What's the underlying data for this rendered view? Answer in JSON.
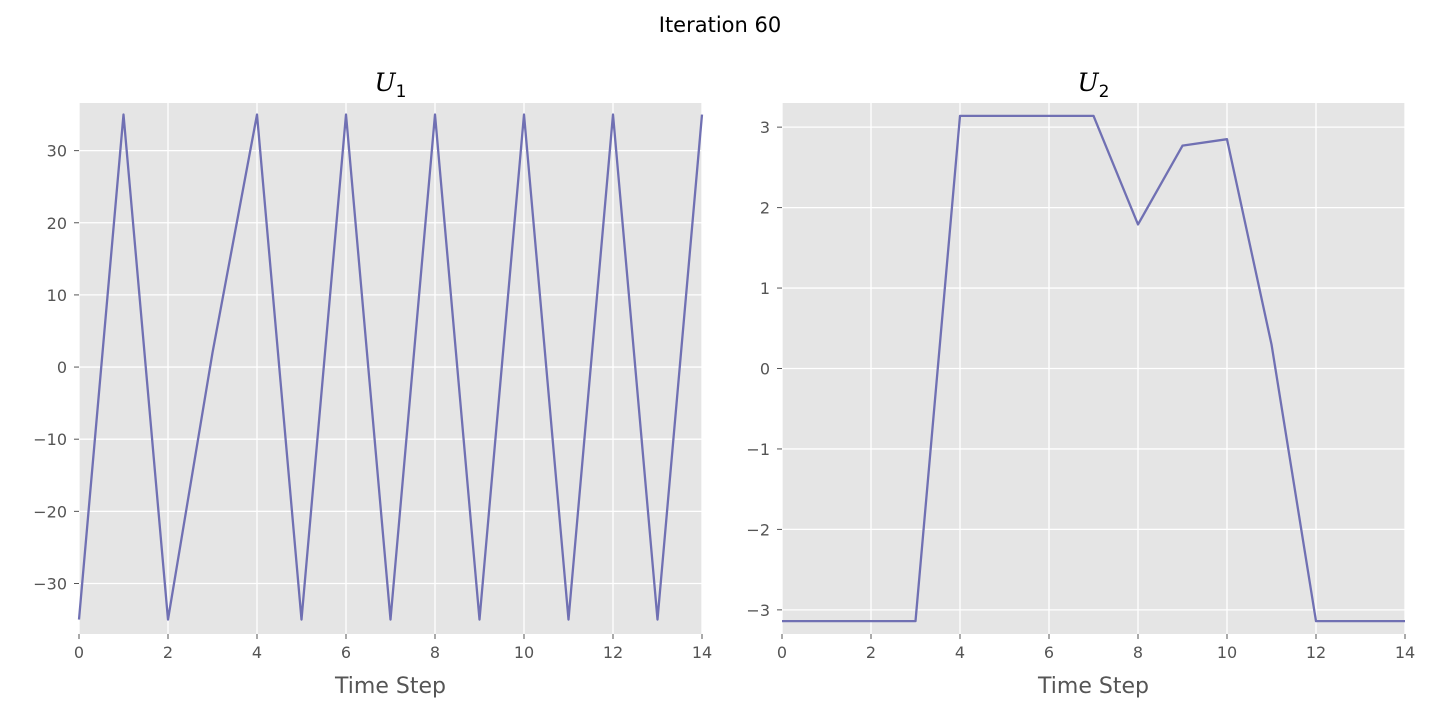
{
  "suptitle": "Iteration 60",
  "colors": {
    "plot_bg": "#e5e5e5",
    "grid": "#ffffff",
    "line": "#7070b3",
    "tick_text": "#555555"
  },
  "chart_data": [
    {
      "type": "line",
      "title": "U",
      "title_subscript": "1",
      "xlabel": "Time Step",
      "ylabel": "",
      "xlim": [
        0,
        14
      ],
      "ylim": [
        -37,
        36.6
      ],
      "xticks": [
        0,
        2,
        4,
        6,
        8,
        10,
        12,
        14
      ],
      "yticks": [
        -30,
        -20,
        -10,
        0,
        10,
        20,
        30
      ],
      "grid": true,
      "x": [
        0,
        1,
        2,
        3,
        4,
        5,
        6,
        7,
        8,
        9,
        10,
        11,
        12,
        13,
        14
      ],
      "series": [
        {
          "values": [
            -35,
            35,
            -35,
            2,
            35,
            -35,
            35,
            -35,
            35,
            -35,
            35,
            -35,
            35,
            -35,
            35
          ]
        }
      ]
    },
    {
      "type": "line",
      "title": "U",
      "title_subscript": "2",
      "xlabel": "Time Step",
      "ylabel": "",
      "xlim": [
        0,
        14
      ],
      "ylim": [
        -3.3,
        3.3
      ],
      "xticks": [
        0,
        2,
        4,
        6,
        8,
        10,
        12,
        14
      ],
      "yticks": [
        -3,
        -2,
        -1,
        0,
        1,
        2,
        3
      ],
      "grid": true,
      "x": [
        0,
        1,
        2,
        3,
        4,
        5,
        6,
        7,
        8,
        9,
        10,
        11,
        12,
        13,
        14
      ],
      "series": [
        {
          "values": [
            -3.14,
            -3.14,
            -3.14,
            -3.14,
            3.14,
            3.14,
            3.14,
            3.14,
            1.79,
            2.77,
            2.85,
            0.3,
            -3.14,
            -3.14,
            -3.14
          ]
        }
      ]
    }
  ]
}
